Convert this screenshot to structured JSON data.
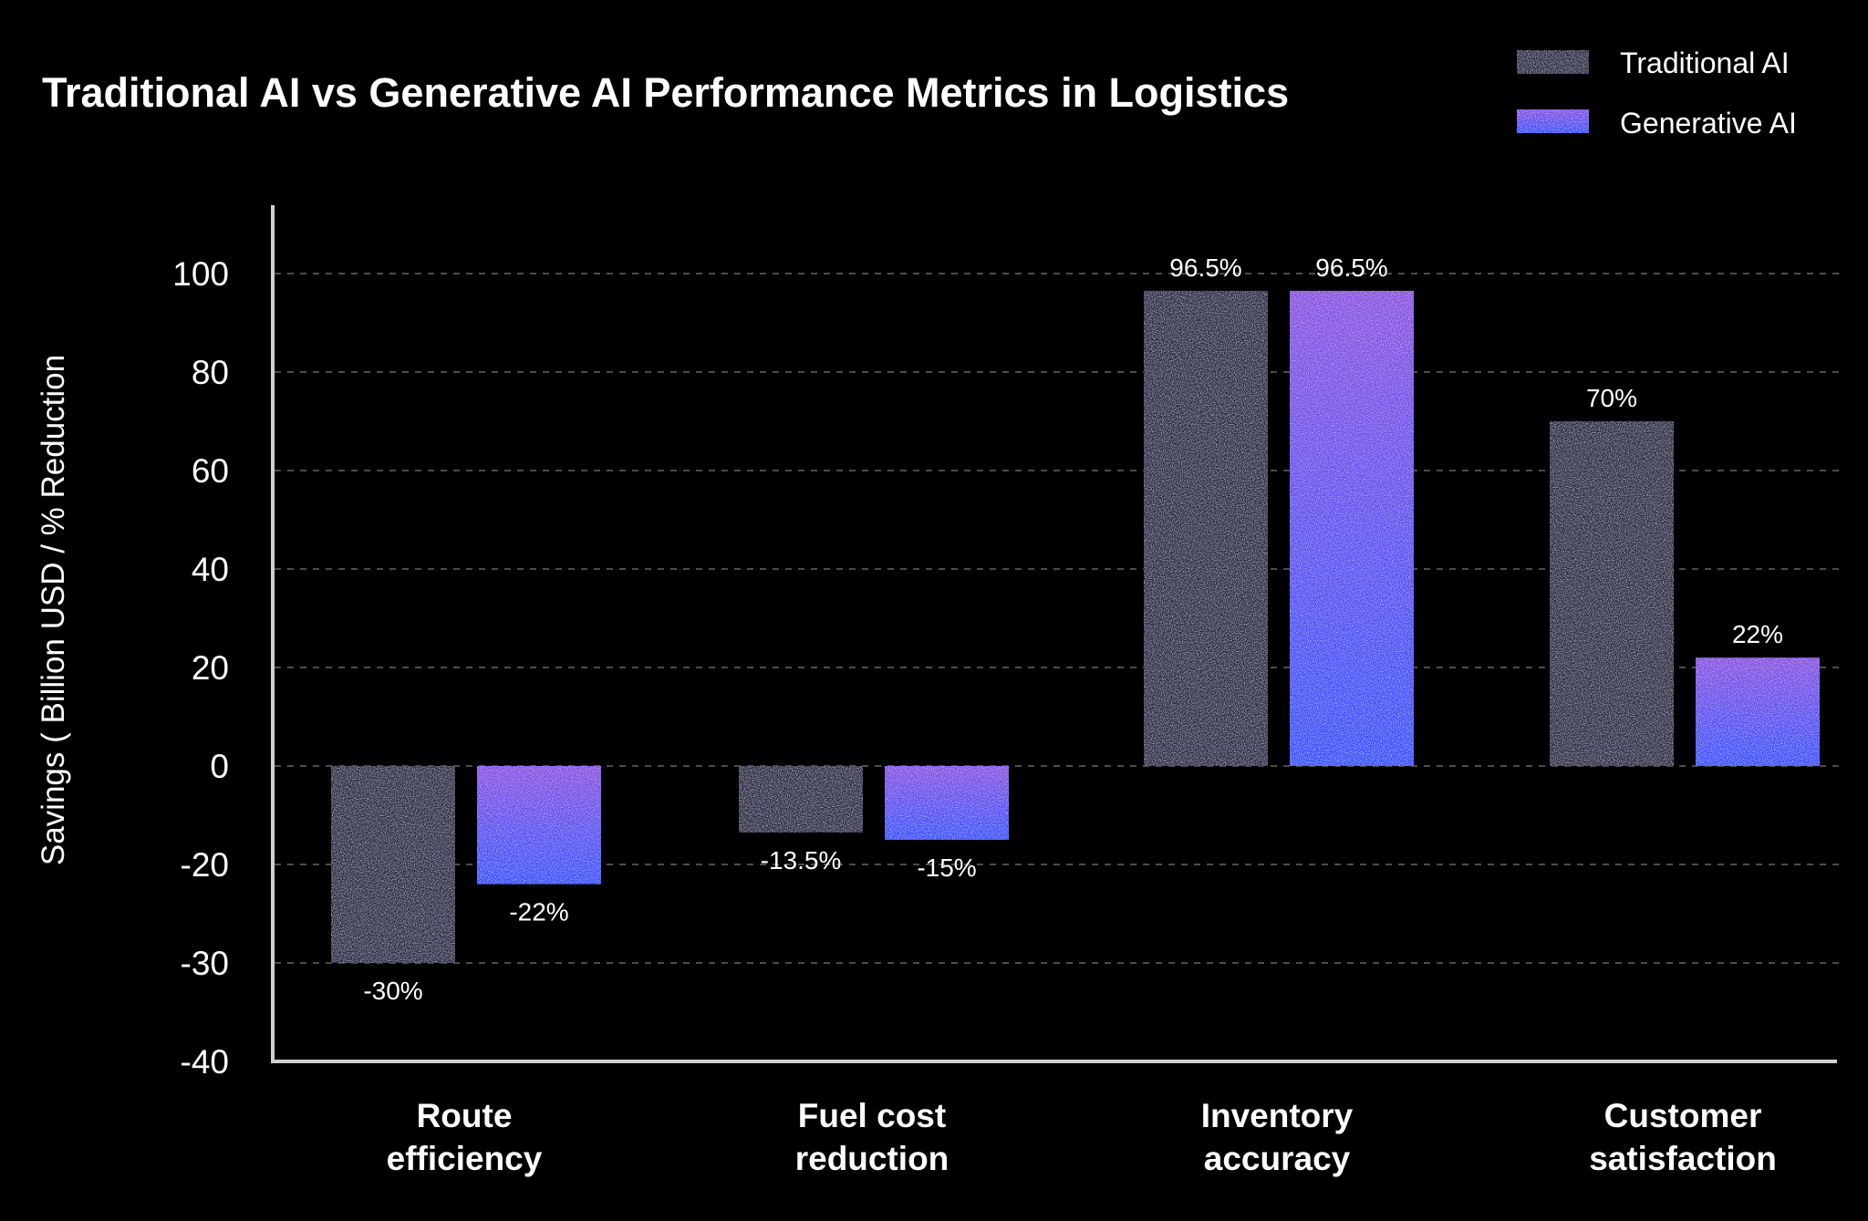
{
  "chart_data": {
    "type": "bar",
    "title": "Traditional AI vs Generative AI Performance Metrics in Logistics",
    "xlabel": "",
    "ylabel": "Savings ( Billion USD / % Reduction",
    "y_tick_labels": [
      "100",
      "80",
      "60",
      "40",
      "20",
      "0",
      "-20",
      "-30",
      "-40"
    ],
    "ylim": [
      -40,
      100
    ],
    "grid": "horizontal dashed",
    "legend_position": "top-right",
    "categories": [
      [
        "Route",
        "efficiency"
      ],
      [
        "Fuel cost",
        "reduction"
      ],
      [
        "Inventory",
        "accuracy"
      ],
      [
        "Customer",
        "satisfaction"
      ]
    ],
    "series": [
      {
        "name": "Traditional AI",
        "values": [
          -30,
          -13.5,
          96.5,
          70
        ],
        "labels": [
          "-30%",
          "-13.5%",
          "96.5%",
          "70%"
        ],
        "color": "#2b2b48"
      },
      {
        "name": "Generative AI",
        "values": [
          -22,
          -15,
          96.5,
          22
        ],
        "labels": [
          "-22%",
          "-15%",
          "96.5%",
          "22%"
        ],
        "color_top": "#8b4fe2",
        "color_bottom": "#3450ff"
      }
    ]
  }
}
